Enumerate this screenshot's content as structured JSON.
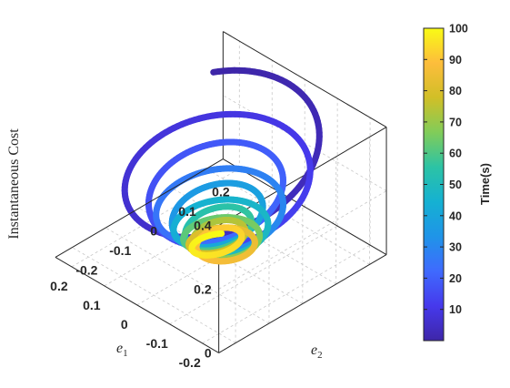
{
  "chart_data": {
    "type": "line3d",
    "title": "",
    "xlabel": "e",
    "xlabel_sub": "1",
    "ylabel": "e",
    "ylabel_sub": "2",
    "zlabel": "Instantaneous Cost",
    "xlim": [
      -0.25,
      0.25
    ],
    "ylim": [
      -0.25,
      0.25
    ],
    "zlim": [
      0,
      0.4
    ],
    "x_ticks": [
      "-0.2",
      "-0.1",
      "0",
      "0.1",
      "0.2"
    ],
    "y_ticks": [
      "-0.2",
      "-0.1",
      "0",
      "0.1",
      "0.2"
    ],
    "z_ticks": [
      "0",
      "0.2",
      "0.4"
    ],
    "grid": true,
    "colorbar": {
      "label": "Time(s)",
      "min": 0,
      "max": 100,
      "ticks": [
        "10",
        "20",
        "30",
        "40",
        "50",
        "60",
        "70",
        "80",
        "90",
        "100"
      ],
      "colormap": [
        "#3e26a8",
        "#4639ec",
        "#3f6afe",
        "#1f94e8",
        "#15b1d2",
        "#2cc3a5",
        "#81cc59",
        "#d1bf27",
        "#fdbd3c",
        "#f9fb15"
      ]
    },
    "series": [
      {
        "time_range": [
          0,
          100
        ],
        "trajectory": "decaying spiral: radius shrinks from about 0.25 to 0.05 as time goes from 0 to 100 s, instantaneous cost shrinks from about 0.38 to 0.01"
      }
    ]
  }
}
